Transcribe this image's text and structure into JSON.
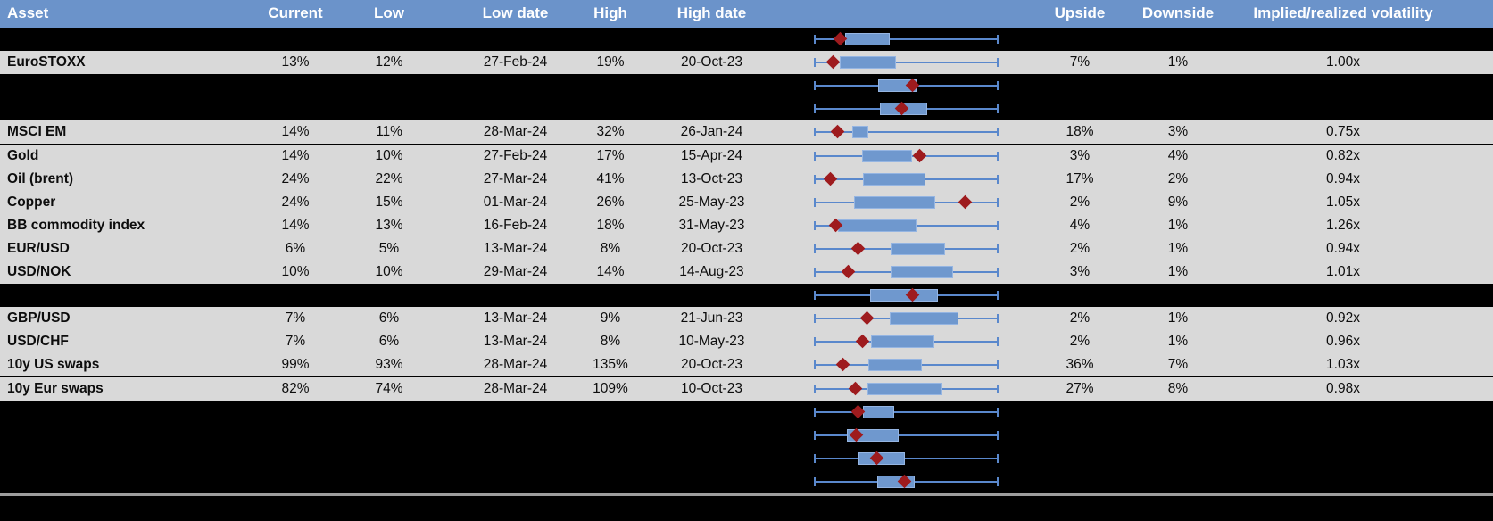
{
  "header": {
    "asset": "Asset",
    "current": "Current",
    "low": "Low",
    "low_date": "Low date",
    "high": "High",
    "high_date": "High date",
    "upside": "Upside",
    "downside": "Downside",
    "implied": "Implied/realized volatility"
  },
  "colors": {
    "header_bg": "#6b93ca",
    "header_text": "#ffffff",
    "row_bg": "#d9d9d9",
    "hidden_bg": "#000000",
    "body_text": "#0d0d0d",
    "box_fill": "#6f98ce",
    "box_border": "#95b5e2",
    "whisker": "#5a88cc",
    "diamond": "#9e1b1e",
    "separator": "#9d9d9d"
  },
  "rows": [
    {
      "type": "hidden"
    },
    {
      "type": "data",
      "asset": "EuroSTOXX",
      "current": "13%",
      "low": "12%",
      "low_date": "27-Feb-24",
      "high": "19%",
      "high_date": "20-Oct-23",
      "upside": "7%",
      "downside": "1%",
      "implied": "1.00x"
    },
    {
      "type": "hidden"
    },
    {
      "type": "hidden"
    },
    {
      "type": "data",
      "asset": "MSCI EM",
      "current": "14%",
      "low": "11%",
      "low_date": "28-Mar-24",
      "high": "32%",
      "high_date": "26-Jan-24",
      "upside": "18%",
      "downside": "3%",
      "implied": "0.75x"
    },
    {
      "type": "data",
      "asset": "Gold",
      "current": "14%",
      "low": "10%",
      "low_date": "27-Feb-24",
      "high": "17%",
      "high_date": "15-Apr-24",
      "upside": "3%",
      "downside": "4%",
      "implied": "0.82x"
    },
    {
      "type": "data",
      "asset": "Oil (brent)",
      "current": "24%",
      "low": "22%",
      "low_date": "27-Mar-24",
      "high": "41%",
      "high_date": "13-Oct-23",
      "upside": "17%",
      "downside": "2%",
      "implied": "0.94x"
    },
    {
      "type": "data",
      "asset": "Copper",
      "current": "24%",
      "low": "15%",
      "low_date": "01-Mar-24",
      "high": "26%",
      "high_date": "25-May-23",
      "upside": "2%",
      "downside": "9%",
      "implied": "1.05x"
    },
    {
      "type": "data",
      "asset": "BB commodity index",
      "current": "14%",
      "low": "13%",
      "low_date": "16-Feb-24",
      "high": "18%",
      "high_date": "31-May-23",
      "upside": "4%",
      "downside": "1%",
      "implied": "1.26x"
    },
    {
      "type": "data",
      "asset": "EUR/USD",
      "current": "6%",
      "low": "5%",
      "low_date": "13-Mar-24",
      "high": "8%",
      "high_date": "20-Oct-23",
      "upside": "2%",
      "downside": "1%",
      "implied": "0.94x"
    },
    {
      "type": "data",
      "asset": "USD/NOK",
      "current": "10%",
      "low": "10%",
      "low_date": "29-Mar-24",
      "high": "14%",
      "high_date": "14-Aug-23",
      "upside": "3%",
      "downside": "1%",
      "implied": "1.01x"
    },
    {
      "type": "hidden"
    },
    {
      "type": "data",
      "asset": "GBP/USD",
      "current": "7%",
      "low": "6%",
      "low_date": "13-Mar-24",
      "high": "9%",
      "high_date": "21-Jun-23",
      "upside": "2%",
      "downside": "1%",
      "implied": "0.92x"
    },
    {
      "type": "data",
      "asset": "USD/CHF",
      "current": "7%",
      "low": "6%",
      "low_date": "13-Mar-24",
      "high": "8%",
      "high_date": "10-May-23",
      "upside": "2%",
      "downside": "1%",
      "implied": "0.96x"
    },
    {
      "type": "data",
      "asset": "10y US swaps",
      "current": "99%",
      "low": "93%",
      "low_date": "28-Mar-24",
      "high": "135%",
      "high_date": "20-Oct-23",
      "upside": "36%",
      "downside": "7%",
      "implied": "1.03x"
    },
    {
      "type": "data",
      "asset": "10y Eur swaps",
      "current": "82%",
      "low": "74%",
      "low_date": "28-Mar-24",
      "high": "109%",
      "high_date": "10-Oct-23",
      "upside": "27%",
      "downside": "8%",
      "implied": "0.98x"
    },
    {
      "type": "hidden"
    },
    {
      "type": "hidden"
    },
    {
      "type": "hidden"
    },
    {
      "type": "hidden"
    }
  ],
  "chart_data": [
    {
      "type": "table",
      "columns": [
        "Asset",
        "Current",
        "Low",
        "Low date",
        "High",
        "High date",
        "Upside",
        "Downside",
        "Implied/realized volatility"
      ],
      "rows": [
        [
          "EuroSTOXX",
          "13%",
          "12%",
          "27-Feb-24",
          "19%",
          "20-Oct-23",
          "7%",
          "1%",
          "1.00x"
        ],
        [
          "MSCI EM",
          "14%",
          "11%",
          "28-Mar-24",
          "32%",
          "26-Jan-24",
          "18%",
          "3%",
          "0.75x"
        ],
        [
          "Gold",
          "14%",
          "10%",
          "27-Feb-24",
          "17%",
          "15-Apr-24",
          "3%",
          "4%",
          "0.82x"
        ],
        [
          "Oil (brent)",
          "24%",
          "22%",
          "27-Mar-24",
          "41%",
          "13-Oct-23",
          "17%",
          "2%",
          "0.94x"
        ],
        [
          "Copper",
          "24%",
          "15%",
          "01-Mar-24",
          "26%",
          "25-May-23",
          "2%",
          "9%",
          "1.05x"
        ],
        [
          "BB commodity index",
          "14%",
          "13%",
          "16-Feb-24",
          "18%",
          "31-May-23",
          "4%",
          "1%",
          "1.26x"
        ],
        [
          "EUR/USD",
          "6%",
          "5%",
          "13-Mar-24",
          "8%",
          "20-Oct-23",
          "2%",
          "1%",
          "0.94x"
        ],
        [
          "USD/NOK",
          "10%",
          "10%",
          "29-Mar-24",
          "14%",
          "14-Aug-23",
          "3%",
          "1%",
          "1.01x"
        ],
        [
          "GBP/USD",
          "7%",
          "6%",
          "13-Mar-24",
          "9%",
          "21-Jun-23",
          "2%",
          "1%",
          "0.92x"
        ],
        [
          "USD/CHF",
          "7%",
          "6%",
          "13-Mar-24",
          "8%",
          "10-May-23",
          "2%",
          "1%",
          "0.96x"
        ],
        [
          "10y US swaps",
          "99%",
          "93%",
          "28-Mar-24",
          "135%",
          "20-Oct-23",
          "36%",
          "7%",
          "1.03x"
        ],
        [
          "10y Eur swaps",
          "82%",
          "74%",
          "28-Mar-24",
          "109%",
          "10-Oct-23",
          "27%",
          "8%",
          "0.98x"
        ]
      ]
    },
    {
      "type": "boxplot",
      "orientation": "horizontal",
      "note": "One box-whisker per row with a red diamond marker; axis unlabeled. Positions normalized to the whisker span (0 = left cap, 1 = right cap). Rows with empty label sit on blacked-out table rows.",
      "x_range_normalized": [
        0,
        1
      ],
      "series": [
        {
          "label": "",
          "whiskers": [
            0,
            1
          ],
          "box": [
            0.166,
            0.41
          ],
          "diamond": 0.137
        },
        {
          "label": "EuroSTOXX",
          "whiskers": [
            0,
            1
          ],
          "box": [
            0.137,
            0.444
          ],
          "diamond": 0.098
        },
        {
          "label": "",
          "whiskers": [
            0,
            1
          ],
          "box": [
            0.346,
            0.556
          ],
          "diamond": 0.532
        },
        {
          "label": "",
          "whiskers": [
            0,
            1
          ],
          "box": [
            0.356,
            0.615
          ],
          "diamond": 0.478
        },
        {
          "label": "MSCI EM",
          "whiskers": [
            0,
            1
          ],
          "box": [
            0.205,
            0.293
          ],
          "diamond": 0.122
        },
        {
          "label": "Gold",
          "whiskers": [
            0,
            1
          ],
          "box": [
            0.259,
            0.532
          ],
          "diamond": 0.571
        },
        {
          "label": "Oil (brent)",
          "whiskers": [
            0,
            1
          ],
          "box": [
            0.263,
            0.605
          ],
          "diamond": 0.083
        },
        {
          "label": "Copper",
          "whiskers": [
            0,
            1
          ],
          "box": [
            0.215,
            0.659
          ],
          "diamond": 0.82
        },
        {
          "label": "BB commodity index",
          "whiskers": [
            0,
            1
          ],
          "box": [
            0.127,
            0.556
          ],
          "diamond": 0.117
        },
        {
          "label": "EUR/USD",
          "whiskers": [
            0,
            1
          ],
          "box": [
            0.415,
            0.712
          ],
          "diamond": 0.239
        },
        {
          "label": "USD/NOK",
          "whiskers": [
            0,
            1
          ],
          "box": [
            0.415,
            0.756
          ],
          "diamond": 0.185
        },
        {
          "label": "",
          "whiskers": [
            0,
            1
          ],
          "box": [
            0.302,
            0.673
          ],
          "diamond": 0.532
        },
        {
          "label": "GBP/USD",
          "whiskers": [
            0,
            1
          ],
          "box": [
            0.41,
            0.785
          ],
          "diamond": 0.283
        },
        {
          "label": "USD/CHF",
          "whiskers": [
            0,
            1
          ],
          "box": [
            0.307,
            0.654
          ],
          "diamond": 0.259
        },
        {
          "label": "10y US swaps",
          "whiskers": [
            0,
            1
          ],
          "box": [
            0.293,
            0.585
          ],
          "diamond": 0.156
        },
        {
          "label": "10y Eur swaps",
          "whiskers": [
            0,
            1
          ],
          "box": [
            0.288,
            0.698
          ],
          "diamond": 0.22
        },
        {
          "label": "",
          "whiskers": [
            0,
            1
          ],
          "box": [
            0.263,
            0.434
          ],
          "diamond": 0.239
        },
        {
          "label": "",
          "whiskers": [
            0,
            1
          ],
          "box": [
            0.176,
            0.459
          ],
          "diamond": 0.229
        },
        {
          "label": "",
          "whiskers": [
            0,
            1
          ],
          "box": [
            0.239,
            0.493
          ],
          "diamond": 0.341
        },
        {
          "label": "",
          "whiskers": [
            0,
            1
          ],
          "box": [
            0.341,
            0.546
          ],
          "diamond": 0.488
        }
      ]
    }
  ]
}
